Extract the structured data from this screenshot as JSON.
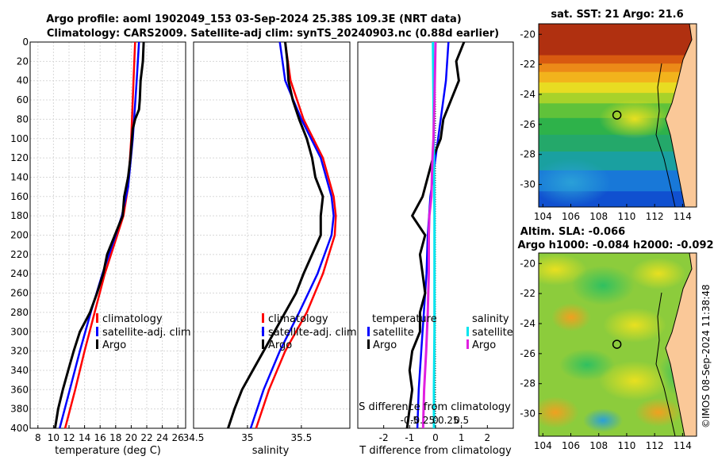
{
  "title_line1": "Argo profile: aoml 1902049_153 03-Sep-2024 25.38S 109.3E (NRT data)",
  "title_line2": "Climatology: CARS2009. Satellite-adj clim: synTS_20240903.nc (0.88d earlier)",
  "sst_title": "sat. SST: 21 Argo: 21.6",
  "sla_title1": "Altim. SLA: -0.066",
  "sla_title2": "Argo h1000: -0.084 h2000: -0.092",
  "timestamp": "©IMOS 08-Sep-2024 11:38:48",
  "colors": {
    "climatology": "#ff0000",
    "satellite": "#0000ff",
    "argo": "#000000",
    "sal_satellite": "#00e5ee",
    "sal_argo": "#e020e0"
  },
  "chart_data": [
    {
      "type": "line",
      "name": "temperature",
      "xlabel": "temperature (deg C)",
      "ylabel": "",
      "xlim": [
        7,
        27
      ],
      "ylim": [
        400,
        0
      ],
      "xticks": [
        "8",
        "10",
        "12",
        "14",
        "16",
        "18",
        "20",
        "22",
        "24",
        "26"
      ],
      "xtick_values": [
        8,
        10,
        12,
        14,
        16,
        18,
        20,
        22,
        24,
        26
      ],
      "yticks": [
        "0",
        "20",
        "40",
        "60",
        "80",
        "100",
        "120",
        "140",
        "160",
        "180",
        "200",
        "220",
        "240",
        "260",
        "280",
        "300",
        "320",
        "340",
        "360",
        "380",
        "400"
      ],
      "ytick_values": [
        0,
        20,
        40,
        60,
        80,
        100,
        120,
        140,
        160,
        180,
        200,
        220,
        240,
        260,
        280,
        300,
        320,
        340,
        360,
        380,
        400
      ],
      "legend": [
        "climatology",
        "satellite-adj. clim",
        "Argo"
      ],
      "series": [
        {
          "name": "climatology",
          "depth": [
            0,
            40,
            100,
            150,
            180,
            200,
            240,
            280,
            320,
            360,
            400
          ],
          "values": [
            20.5,
            20.3,
            20.0,
            19.6,
            19.0,
            18.2,
            16.6,
            15.3,
            14.0,
            12.8,
            11.5
          ]
        },
        {
          "name": "satellite-adj. clim",
          "depth": [
            0,
            40,
            100,
            150,
            180,
            200,
            240,
            280,
            320,
            360,
            400
          ],
          "values": [
            21.0,
            20.7,
            20.2,
            19.6,
            18.8,
            18.0,
            16.3,
            14.8,
            13.4,
            12.1,
            10.8
          ]
        },
        {
          "name": "Argo",
          "depth": [
            0,
            20,
            40,
            60,
            70,
            80,
            90,
            100,
            120,
            140,
            160,
            180,
            200,
            220,
            240,
            260,
            280,
            300,
            320,
            340,
            360,
            380,
            400
          ],
          "values": [
            21.6,
            21.5,
            21.2,
            21.1,
            21.0,
            20.5,
            20.2,
            20.1,
            19.9,
            19.6,
            19.1,
            18.9,
            17.9,
            16.9,
            16.4,
            15.6,
            14.7,
            13.4,
            12.6,
            11.9,
            11.2,
            10.6,
            10.2
          ]
        }
      ]
    },
    {
      "type": "line",
      "name": "salinity",
      "xlabel": "salinity",
      "xlim": [
        34.5,
        35.95
      ],
      "ylim": [
        400,
        0
      ],
      "xticks": [
        "34.5",
        "35",
        "35.5"
      ],
      "xtick_values": [
        34.5,
        35,
        35.5
      ],
      "legend": [
        "climatology",
        "satellite-adj. clim",
        "Argo"
      ],
      "series": [
        {
          "name": "climatology",
          "depth": [
            0,
            40,
            80,
            120,
            160,
            180,
            200,
            240,
            280,
            320,
            360,
            400
          ],
          "values": [
            35.35,
            35.4,
            35.52,
            35.7,
            35.8,
            35.82,
            35.81,
            35.7,
            35.55,
            35.35,
            35.2,
            35.08
          ]
        },
        {
          "name": "satellite-adj. clim",
          "depth": [
            0,
            40,
            80,
            120,
            160,
            180,
            200,
            240,
            280,
            320,
            360,
            400
          ],
          "values": [
            35.3,
            35.35,
            35.5,
            35.68,
            35.78,
            35.8,
            35.78,
            35.65,
            35.48,
            35.3,
            35.15,
            35.03
          ]
        },
        {
          "name": "Argo",
          "depth": [
            0,
            20,
            40,
            60,
            80,
            100,
            120,
            140,
            160,
            180,
            200,
            220,
            240,
            260,
            280,
            300,
            320,
            340,
            360,
            380,
            400
          ],
          "values": [
            35.35,
            35.37,
            35.38,
            35.42,
            35.48,
            35.55,
            35.6,
            35.63,
            35.7,
            35.68,
            35.68,
            35.6,
            35.52,
            35.45,
            35.35,
            35.25,
            35.15,
            35.05,
            34.95,
            34.88,
            34.82
          ]
        }
      ]
    },
    {
      "type": "line",
      "name": "differences",
      "xlabel": "T difference from climatology",
      "x2label": "S difference from climatology",
      "xlim": [
        -3,
        3
      ],
      "ylim": [
        400,
        0
      ],
      "xticks": [
        "-2",
        "-1",
        "0",
        "1",
        "2"
      ],
      "xtick_values": [
        -2,
        -1,
        0,
        1,
        2
      ],
      "x2ticks": [
        "-0.5",
        "-0.25",
        "0",
        "0.25",
        "0.5"
      ],
      "legend_temperature_title": "temperature",
      "legend_salinity_title": "salinity",
      "legend_temperature": [
        "satellite",
        "Argo"
      ],
      "legend_salinity": [
        "satellite",
        "Argo"
      ],
      "series": [
        {
          "name": "T satellite",
          "depth": [
            0,
            40,
            80,
            120,
            160,
            200,
            240,
            280,
            320,
            360,
            400
          ],
          "values": [
            0.5,
            0.4,
            0.2,
            0.0,
            -0.2,
            -0.3,
            -0.35,
            -0.45,
            -0.55,
            -0.65,
            -0.7
          ]
        },
        {
          "name": "T Argo",
          "depth": [
            0,
            20,
            40,
            60,
            80,
            100,
            120,
            140,
            160,
            180,
            200,
            220,
            240,
            260,
            280,
            300,
            320,
            340,
            360,
            380,
            400
          ],
          "values": [
            1.1,
            0.8,
            0.9,
            0.6,
            0.3,
            0.2,
            -0.1,
            -0.3,
            -0.5,
            -0.9,
            -0.4,
            -0.6,
            -0.5,
            -0.4,
            -0.6,
            -0.6,
            -0.9,
            -1.0,
            -0.9,
            -1.0,
            -1.1
          ]
        },
        {
          "name": "S satellite",
          "depth": [
            0,
            60,
            120,
            180,
            240,
            300,
            360,
            400
          ],
          "values": [
            -0.05,
            -0.04,
            -0.03,
            -0.02,
            -0.02,
            -0.02,
            -0.03,
            -0.03
          ]
        },
        {
          "name": "S Argo",
          "depth": [
            0,
            60,
            80,
            100,
            120,
            140,
            160,
            180,
            200,
            240,
            280,
            320,
            360,
            400
          ],
          "values": [
            0.0,
            -0.02,
            -0.03,
            -0.04,
            -0.06,
            -0.07,
            -0.08,
            -0.12,
            -0.13,
            -0.13,
            -0.15,
            -0.18,
            -0.22,
            -0.24
          ]
        }
      ]
    },
    {
      "type": "heatmap",
      "name": "sst_map",
      "title": "sat. SST: 21 Argo: 21.6",
      "xticks": [
        "104",
        "106",
        "108",
        "110",
        "112",
        "114"
      ],
      "xtick_values": [
        104,
        106,
        108,
        110,
        112,
        114
      ],
      "yticks": [
        "-20",
        "-22",
        "-24",
        "-26",
        "-28",
        "-30"
      ],
      "ytick_values": [
        -20,
        -22,
        -24,
        -26,
        -28,
        -30
      ],
      "xlim": [
        103.7,
        115
      ],
      "ylim": [
        -31.5,
        -19.3
      ],
      "marker": {
        "lon": 109.3,
        "lat": -25.38
      }
    },
    {
      "type": "heatmap",
      "name": "sla_map",
      "title": "Altim. SLA: -0.066",
      "xticks": [
        "104",
        "106",
        "108",
        "110",
        "112",
        "114"
      ],
      "xtick_values": [
        104,
        106,
        108,
        110,
        112,
        114
      ],
      "yticks": [
        "-20",
        "-22",
        "-24",
        "-26",
        "-28",
        "-30"
      ],
      "ytick_values": [
        -20,
        -22,
        -24,
        -26,
        -28,
        -30
      ],
      "xlim": [
        103.7,
        115
      ],
      "ylim": [
        -31.5,
        -19.3
      ],
      "marker": {
        "lon": 109.3,
        "lat": -25.38
      }
    }
  ]
}
